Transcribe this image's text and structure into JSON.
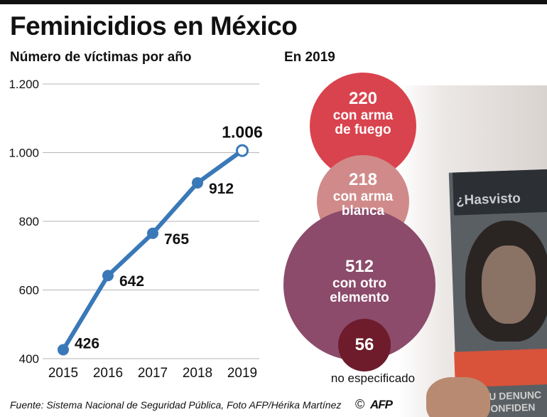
{
  "title": "Feminicidios en México",
  "chart_data": {
    "type": "line",
    "title": "Número de víctimas por año",
    "x": [
      "2015",
      "2016",
      "2017",
      "2018",
      "2019"
    ],
    "values": [
      426,
      642,
      765,
      912,
      1006
    ],
    "value_labels": [
      "426",
      "642",
      "765",
      "912",
      "1.006"
    ],
    "ylim": [
      400,
      1200
    ],
    "yticks": [
      400,
      600,
      800,
      1000,
      1200
    ],
    "ytick_labels": [
      "400",
      "600",
      "800",
      "1.000",
      "1.200"
    ],
    "xlabel": "",
    "ylabel": "",
    "grid": true,
    "line_color": "#3a79b8"
  },
  "breakdown": {
    "title": "En 2019",
    "categories": [
      {
        "value": 220,
        "value_label": "220",
        "label_line1": "con arma",
        "label_line2": "de fuego",
        "color": "#d9434e"
      },
      {
        "value": 218,
        "value_label": "218",
        "label_line1": "con arma",
        "label_line2": "blanca",
        "color": "#d08a8a"
      },
      {
        "value": 512,
        "value_label": "512",
        "label_line1": "con otro",
        "label_line2": "elemento",
        "color": "#8c4b6b"
      },
      {
        "value": 56,
        "value_label": "56",
        "label_line1": "no especificado",
        "label_line2": "",
        "color": "#6e1c2c"
      }
    ]
  },
  "photo": {
    "sign_text": "¿Hasvisto",
    "banner_line1": "TU DENUNC",
    "banner_line2": "CONFIDEN"
  },
  "source": "Fuente: Sistema Nacional de Seguridad Pública, Foto AFP/Hérika Martínez",
  "copyright_symbol": "©",
  "agency_logo": "AFP"
}
